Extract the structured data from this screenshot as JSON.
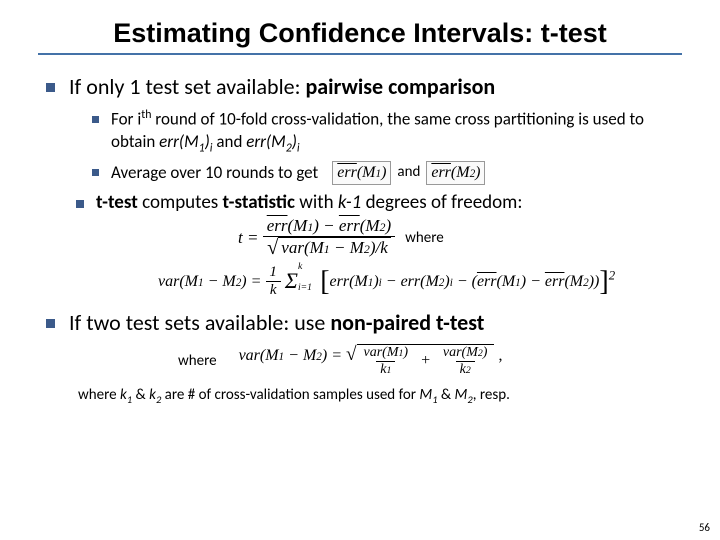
{
  "title": "Estimating Confidence Intervals: t-test",
  "rule_color": "#4472a8",
  "bullet_color": "#3b5a8a",
  "page_number": "56",
  "bullets": {
    "b1": "If only 1 test set available: pairwise comparison",
    "b1a_pre": "For i",
    "b1a_post": " round of 10-fold cross-validation, the same cross partitioning is used to obtain ",
    "b1a_err1": "err(M",
    "b1a_and": " and ",
    "b1b": "Average over 10 rounds to get",
    "and_label": "and",
    "b1c_pre": "t-test",
    "b1c_mid": " computes ",
    "b1c_stat": "t-statistic",
    "b1c_with": " with ",
    "b1c_k1": "k-1",
    "b1c_dof": " degrees of freedom:",
    "where": "where",
    "b2": "If two test sets available: use ",
    "b2_bold": "non-paired t-test",
    "footnote_pre": "where ",
    "footnote_k1": "k",
    "footnote_amp": " & ",
    "footnote_k2": "k",
    "footnote_mid": " are # of cross-validation samples used for ",
    "footnote_m1": "M",
    "footnote_m2": "M",
    "footnote_resp": ", resp."
  },
  "formulas": {
    "errM1": "err",
    "M1": "M",
    "one": "1",
    "two": "2",
    "t_eq": "t = ",
    "varlabel": "var",
    "k": "k",
    "sum": "Σ",
    "minus": " − "
  }
}
